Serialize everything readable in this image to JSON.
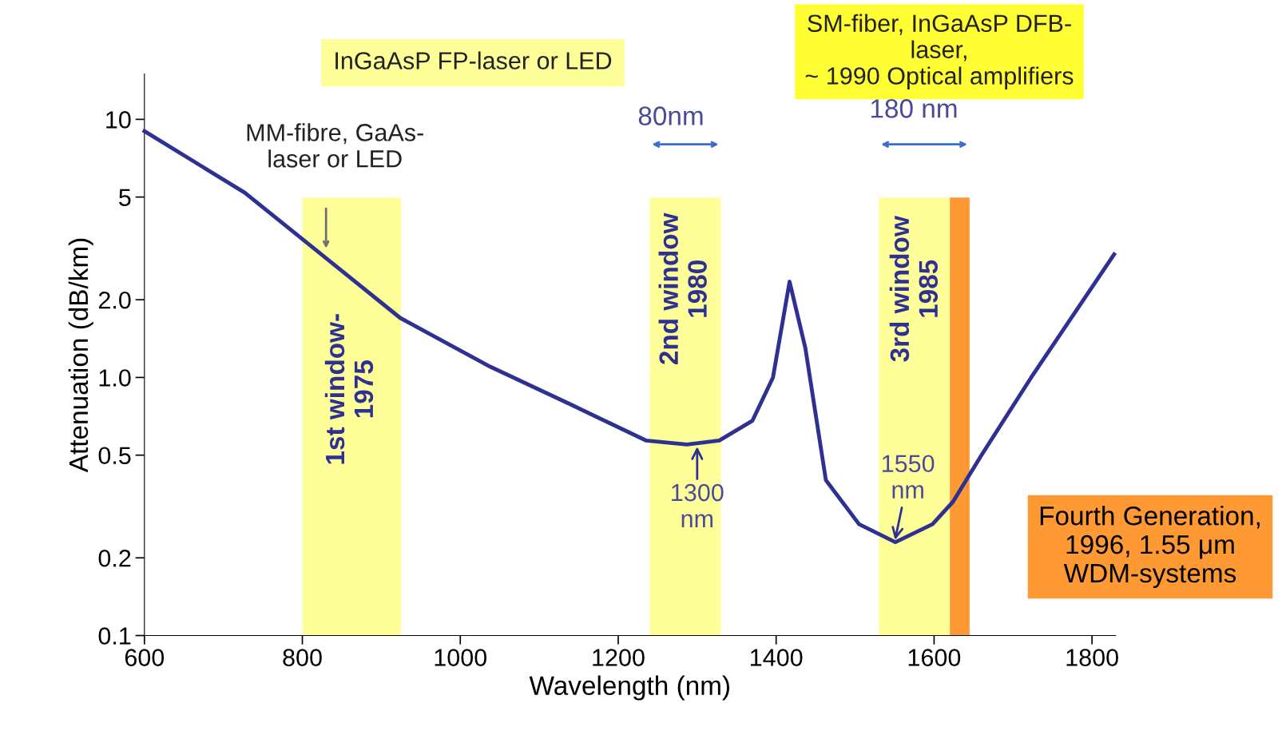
{
  "chart_data": {
    "type": "line",
    "xlabel": "Wavelength (nm)",
    "ylabel": "Attenuation (dB/km)",
    "x": [
      600,
      727,
      830,
      924,
      1038,
      1142,
      1235,
      1287,
      1328,
      1370,
      1396,
      1417,
      1437,
      1463,
      1505,
      1551,
      1598,
      1624,
      1660,
      1723,
      1828
    ],
    "series": [
      {
        "color": "#2e3192",
        "values": [
          9.0,
          5.2,
          2.9,
          1.7,
          1.1,
          0.78,
          0.57,
          0.55,
          0.57,
          0.68,
          1.0,
          2.35,
          1.3,
          0.4,
          0.27,
          0.23,
          0.27,
          0.33,
          0.5,
          1.0,
          3.0
        ]
      }
    ],
    "log": "y",
    "xlim": [
      600,
      1830
    ],
    "ylim": [
      0.1,
      15
    ],
    "xticks": [
      600,
      800,
      1000,
      1200,
      1400,
      1600,
      1800
    ],
    "yticks": [
      {
        "value": 0.1,
        "label": "0.1"
      },
      {
        "value": 0.2,
        "label": "0.2"
      },
      {
        "value": 0.5,
        "label": "0.5"
      },
      {
        "value": 1,
        "label": "1.0"
      },
      {
        "value": 2,
        "label": "2.0"
      },
      {
        "value": 5,
        "label": "5"
      },
      {
        "value": 10,
        "label": "10"
      }
    ],
    "grid": false,
    "marker": "none",
    "line_style": "solid",
    "bands": [
      {
        "axis": "x",
        "from": 800,
        "to": 925,
        "label": "1st window-\n1975",
        "color": "#ffff99"
      },
      {
        "axis": "x",
        "from": 1240,
        "to": 1330,
        "label": "2nd window\n1980",
        "color": "#ffff99"
      },
      {
        "axis": "x",
        "from": 1530,
        "to": 1625,
        "label": "3rd window\n1985",
        "color": "#ffff99"
      },
      {
        "axis": "x",
        "from": 1620,
        "to": 1645,
        "label": "Fourth Generation,\n1996, 1.55 μm\nWDM-systems",
        "color": "#ff9933"
      }
    ],
    "annotations": [
      "MM-fibre, GaAs-\nlaser or LED",
      "InGaAsP FP-laser or LED",
      "SM-fiber, InGaAsP DFB-\nlaser,\n~ 1990 Optical amplifiers",
      "80nm",
      "180 nm",
      {
        "text": "1300\nnm",
        "x": 1300,
        "y": 0.55
      },
      {
        "text": "1550\nnm",
        "x": 1550,
        "y": 0.23
      }
    ]
  }
}
